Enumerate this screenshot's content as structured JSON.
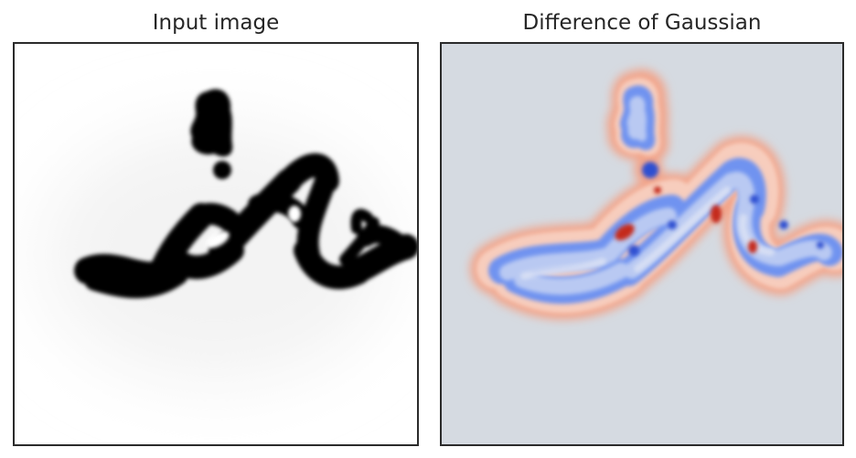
{
  "panels": [
    {
      "title": "Input image",
      "background": "#ffffff",
      "stroke_color": "#050505",
      "colormap": "gray"
    },
    {
      "title": "Difference of Gaussian",
      "background": "#d5dae1",
      "colormap": "coolwarm",
      "colors": {
        "outer_halo": "#f2a58b",
        "inner_halo": "#f7cdbd",
        "outline_blue": "#6f93f0",
        "fill_light_blue": "#b9c9f2",
        "fill_pale": "#dbe2f4",
        "dark_blue": "#2f4fd1",
        "red": "#c42a1c"
      }
    }
  ]
}
